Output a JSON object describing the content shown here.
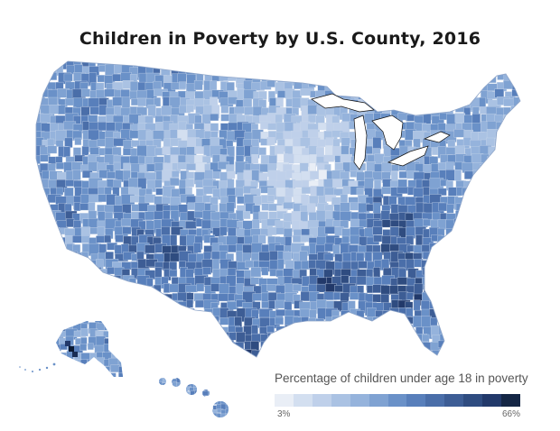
{
  "title": "Children in Poverty by U.S. County, 2016",
  "legend": {
    "title": "Percentage of children under age 18 in poverty",
    "min_label": "3%",
    "max_label": "66%",
    "colors": [
      "#e9eef6",
      "#d3dff0",
      "#bfd0ea",
      "#aac2e3",
      "#95b3dc",
      "#7fa2d2",
      "#6a91c8",
      "#587fbb",
      "#4a6ea9",
      "#3d5d95",
      "#2f4c80",
      "#22396a",
      "#142645"
    ]
  },
  "map": {
    "region_names": [
      "Alaska",
      "Hawaii",
      "Great Lakes"
    ],
    "hotspot_colors": [
      "#0c1a33",
      "#182d55",
      "#22396a"
    ],
    "water_color": "#ffffff",
    "border_color": "#c9d6ea"
  }
}
